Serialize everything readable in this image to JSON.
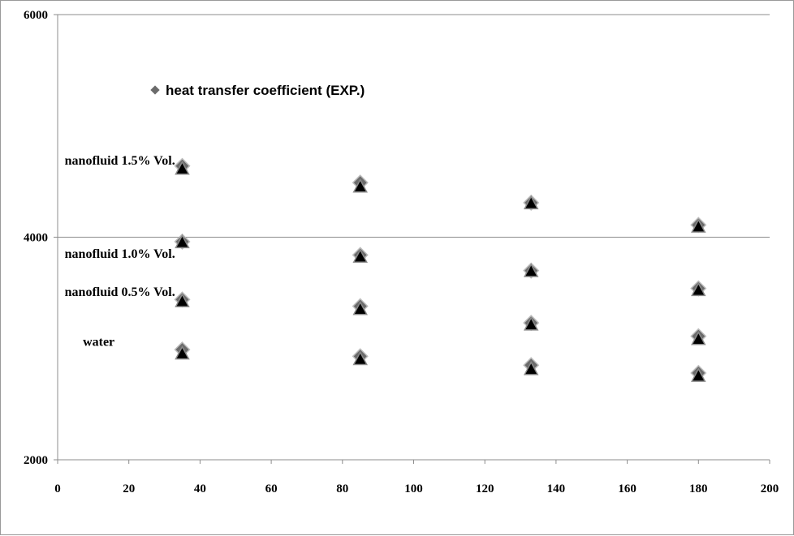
{
  "chart_data": {
    "type": "scatter",
    "title": "",
    "xlabel": "",
    "ylabel": "",
    "xlim": [
      0,
      200
    ],
    "ylim": [
      2000,
      6000
    ],
    "x_ticks": [
      "0",
      "20",
      "40",
      "60",
      "80",
      "100",
      "120",
      "140",
      "160",
      "180",
      "200"
    ],
    "y_ticks": [
      "2000",
      "4000",
      "6000"
    ],
    "grid": "horizontal major gridlines at 2000, 4000, 6000",
    "legend_position": "top-left inside plot",
    "series": [
      {
        "name": "heat transfer coefficient (EXP.)",
        "marker": "diamond",
        "color": "#6b6b6b",
        "points": [
          {
            "x": 35,
            "y": 4640
          },
          {
            "x": 85,
            "y": 4490
          },
          {
            "x": 133,
            "y": 4310
          },
          {
            "x": 180,
            "y": 4110
          },
          {
            "x": 35,
            "y": 3960
          },
          {
            "x": 85,
            "y": 3840
          },
          {
            "x": 133,
            "y": 3700
          },
          {
            "x": 180,
            "y": 3540
          },
          {
            "x": 35,
            "y": 3440
          },
          {
            "x": 85,
            "y": 3380
          },
          {
            "x": 133,
            "y": 3230
          },
          {
            "x": 180,
            "y": 3110
          },
          {
            "x": 35,
            "y": 2990
          },
          {
            "x": 85,
            "y": 2930
          },
          {
            "x": 133,
            "y": 2850
          },
          {
            "x": 180,
            "y": 2780
          }
        ]
      },
      {
        "name": "",
        "marker": "triangle",
        "color": "#000000",
        "points": [
          {
            "x": 35,
            "y": 4610
          },
          {
            "x": 85,
            "y": 4450
          },
          {
            "x": 133,
            "y": 4300
          },
          {
            "x": 180,
            "y": 4090
          },
          {
            "x": 35,
            "y": 3950
          },
          {
            "x": 85,
            "y": 3820
          },
          {
            "x": 133,
            "y": 3690
          },
          {
            "x": 180,
            "y": 3520
          },
          {
            "x": 35,
            "y": 3420
          },
          {
            "x": 85,
            "y": 3350
          },
          {
            "x": 133,
            "y": 3210
          },
          {
            "x": 180,
            "y": 3080
          },
          {
            "x": 35,
            "y": 2950
          },
          {
            "x": 85,
            "y": 2900
          },
          {
            "x": 133,
            "y": 2810
          },
          {
            "x": 180,
            "y": 2750
          }
        ]
      }
    ],
    "legend": [
      {
        "label": "heat transfer coefficient (EXP.)",
        "marker": "diamond",
        "color": "#6b6b6b"
      }
    ],
    "annotations": [
      {
        "text": "nanofluid 1.5% Vol.",
        "anchor_x": 33,
        "anchor_y": 4690
      },
      {
        "text": "nanofluid 1.0% Vol.",
        "anchor_x": 33,
        "anchor_y": 3850
      },
      {
        "text": "nanofluid 0.5% Vol.",
        "anchor_x": 33,
        "anchor_y": 3510
      },
      {
        "text": "water",
        "anchor_x": 16,
        "anchor_y": 3060
      }
    ]
  }
}
